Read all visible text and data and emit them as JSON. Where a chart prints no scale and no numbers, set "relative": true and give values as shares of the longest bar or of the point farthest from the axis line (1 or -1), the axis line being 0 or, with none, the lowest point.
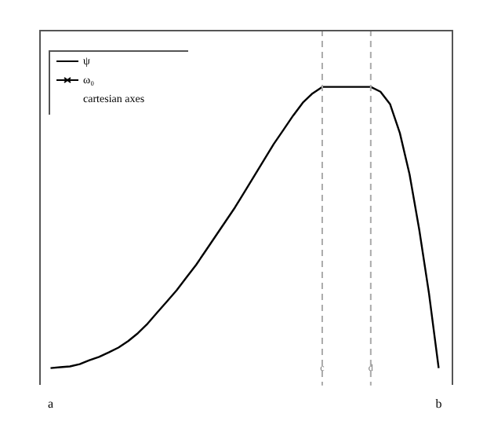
{
  "chart_data": {
    "type": "line",
    "relative": true,
    "categories": [
      "a",
      null,
      null,
      null,
      null,
      null,
      null,
      null,
      null,
      null,
      null,
      null,
      null,
      null,
      null,
      null,
      null,
      null,
      null,
      null,
      null,
      null,
      null,
      null,
      null,
      null,
      null,
      null,
      "c",
      null,
      null,
      null,
      null,
      "d",
      null,
      null,
      null,
      null,
      null,
      null,
      "b"
    ],
    "series": [
      {
        "name": "ψ",
        "color": "#000000",
        "values": [
          0,
          0.003,
          0.006,
          0.014,
          0.028,
          0.04,
          0.056,
          0.073,
          0.096,
          0.124,
          0.158,
          0.198,
          0.237,
          0.277,
          0.322,
          0.367,
          0.418,
          0.469,
          0.52,
          0.571,
          0.627,
          0.684,
          0.74,
          0.797,
          0.847,
          0.898,
          0.944,
          0.977,
          1,
          1,
          1,
          1,
          1,
          1,
          0.983,
          0.938,
          0.836,
          0.689,
          0.492,
          0.266,
          0
        ]
      },
      {
        "name": "ω₀",
        "color": "#000000",
        "marker": "cross",
        "values": [
          null,
          null,
          null,
          null,
          null,
          null,
          null,
          null,
          null,
          null,
          null,
          null,
          null,
          null,
          null,
          null,
          null,
          null,
          null,
          null,
          null,
          null,
          null,
          null,
          null,
          null,
          null,
          null,
          null,
          null,
          null,
          null,
          null,
          null,
          null,
          null,
          null,
          null,
          null,
          null,
          null
        ]
      }
    ],
    "ref_lines": [
      {
        "axis": "x",
        "value": "c",
        "color": "#aaaaaa",
        "line_style": "dashed"
      },
      {
        "axis": "x",
        "value": "d",
        "color": "#aaaaaa",
        "line_style": "dashed"
      }
    ],
    "annotations": [
      "cartesian axes"
    ],
    "legend": "top left",
    "grid": false,
    "marker": "none",
    "line_style": "solid"
  }
}
